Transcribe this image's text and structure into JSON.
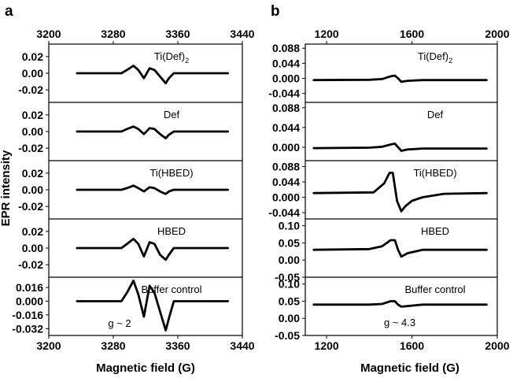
{
  "figure": {
    "panel_letters": [
      "a",
      "b"
    ],
    "ylabel": "EPR intensity",
    "xlabel": "Magnetic field (G)"
  },
  "chart_data": [
    {
      "panel": "a",
      "type": "line",
      "xlabel": "Magnetic field (G)",
      "ylabel": "EPR intensity",
      "xlim": [
        3200,
        3440
      ],
      "xticks": [
        3200,
        3280,
        3360,
        3440
      ],
      "xticklabels": [
        "3200",
        "3280",
        "3360",
        "3440"
      ],
      "grid": false,
      "subplots": [
        {
          "title": "Ti(Def)2",
          "title_main": "Ti(Def)",
          "title_sub": "2",
          "ylim": [
            -0.035,
            0.035
          ],
          "yticks": [
            0.02,
            0.0,
            -0.02
          ],
          "yticklabels": [
            "0.02",
            "0.00",
            "-0.02"
          ],
          "series": [
            {
              "x": [
                3235,
                3290,
                3297,
                3305,
                3311,
                3318,
                3325,
                3331,
                3338,
                3345,
                3349,
                3355,
                3375,
                3422
              ],
              "y": [
                0.0,
                0.0,
                0.004,
                0.009,
                0.004,
                -0.006,
                0.006,
                0.004,
                -0.004,
                -0.012,
                -0.006,
                0.0,
                0.0,
                0.0
              ]
            }
          ]
        },
        {
          "title": "Def",
          "ylim": [
            -0.035,
            0.035
          ],
          "yticks": [
            0.02,
            0.0,
            -0.02
          ],
          "yticklabels": [
            "0.02",
            "0.00",
            "-0.02"
          ],
          "series": [
            {
              "x": [
                3235,
                3290,
                3297,
                3305,
                3311,
                3318,
                3325,
                3331,
                3338,
                3345,
                3349,
                3355,
                3375,
                3422
              ],
              "y": [
                0.0,
                0.0,
                0.003,
                0.006,
                0.003,
                -0.003,
                0.004,
                0.003,
                -0.003,
                -0.008,
                -0.004,
                0.0,
                0.0,
                0.0
              ]
            }
          ]
        },
        {
          "title": "Ti(HBED)",
          "ylim": [
            -0.035,
            0.035
          ],
          "yticks": [
            0.02,
            0.0,
            -0.02
          ],
          "yticklabels": [
            "0.02",
            "0.00",
            "-0.02"
          ],
          "series": [
            {
              "x": [
                3235,
                3290,
                3297,
                3305,
                3311,
                3318,
                3325,
                3331,
                3338,
                3345,
                3349,
                3355,
                3375,
                3422
              ],
              "y": [
                0.0,
                0.0,
                0.002,
                0.005,
                0.002,
                -0.002,
                0.003,
                0.002,
                -0.002,
                -0.005,
                -0.002,
                0.0,
                0.0,
                0.0
              ]
            }
          ]
        },
        {
          "title": "HBED",
          "ylim": [
            -0.035,
            0.035
          ],
          "yticks": [
            0.02,
            0.0,
            -0.02
          ],
          "yticklabels": [
            "0.02",
            "0.00",
            "-0.02"
          ],
          "series": [
            {
              "x": [
                3235,
                3290,
                3297,
                3305,
                3311,
                3318,
                3325,
                3331,
                3338,
                3345,
                3349,
                3355,
                3375,
                3422
              ],
              "y": [
                0.0,
                0.0,
                0.005,
                0.011,
                0.005,
                -0.01,
                0.007,
                0.005,
                -0.008,
                -0.014,
                -0.008,
                0.0,
                0.0,
                0.0
              ]
            }
          ]
        },
        {
          "title": "Buffer control",
          "annotation": "g ~ 2",
          "ylim": [
            -0.04,
            0.028
          ],
          "yticks": [
            0.016,
            0.0,
            -0.016,
            -0.032
          ],
          "yticklabels": [
            "0.016",
            "0.000",
            "-0.016",
            "-0.032"
          ],
          "series": [
            {
              "x": [
                3235,
                3290,
                3297,
                3305,
                3311,
                3318,
                3325,
                3331,
                3338,
                3345,
                3349,
                3355,
                3375,
                3422
              ],
              "y": [
                0.0,
                0.0,
                0.01,
                0.024,
                0.008,
                -0.018,
                0.018,
                0.01,
                -0.012,
                -0.034,
                -0.02,
                0.0,
                0.0,
                0.0
              ]
            }
          ]
        }
      ]
    },
    {
      "panel": "b",
      "type": "line",
      "xlabel": "Magnetic field (G)",
      "xlim": [
        1100,
        2000
      ],
      "xticks": [
        1200,
        1600,
        2000
      ],
      "xticklabels": [
        "1200",
        "1600",
        "2000"
      ],
      "grid": false,
      "subplots": [
        {
          "title": "Ti(Def)2",
          "title_main": "Ti(Def)",
          "title_sub": "2",
          "ylim": [
            -0.07,
            0.1
          ],
          "yticks": [
            0.088,
            0.044,
            0.0,
            -0.044
          ],
          "yticklabels": [
            "0.088",
            "0.044",
            "0.000",
            "-0.044"
          ],
          "series": [
            {
              "x": [
                1140,
                1400,
                1460,
                1500,
                1520,
                1535,
                1550,
                1580,
                1650,
                1950
              ],
              "y": [
                -0.005,
                -0.004,
                -0.002,
                0.006,
                0.008,
                0.0,
                -0.01,
                -0.007,
                -0.005,
                -0.005
              ]
            }
          ]
        },
        {
          "title": "Def",
          "ylim": [
            -0.03,
            0.1
          ],
          "yticks": [
            0.088,
            0.044,
            0.0
          ],
          "yticklabels": [
            "0.088",
            "0.044",
            "0.000"
          ],
          "series": [
            {
              "x": [
                1140,
                1400,
                1460,
                1500,
                1520,
                1535,
                1550,
                1580,
                1650,
                1950
              ],
              "y": [
                -0.002,
                -0.001,
                0.001,
                0.006,
                0.008,
                0.0,
                -0.008,
                -0.005,
                -0.003,
                -0.003
              ]
            }
          ]
        },
        {
          "title": "Ti(HBED)",
          "ylim": [
            -0.062,
            0.105
          ],
          "yticks": [
            0.088,
            0.044,
            0.0,
            -0.044
          ],
          "yticklabels": [
            "0.088",
            "0.044",
            "0.000",
            "-0.044"
          ],
          "series": [
            {
              "x": [
                1140,
                1420,
                1470,
                1495,
                1510,
                1530,
                1550,
                1570,
                1600,
                1650,
                1750,
                1950
              ],
              "y": [
                0.012,
                0.014,
                0.04,
                0.07,
                0.07,
                -0.01,
                -0.04,
                -0.025,
                -0.01,
                0.0,
                0.01,
                0.012
              ]
            }
          ]
        },
        {
          "title": "HBED",
          "ylim": [
            -0.05,
            0.12
          ],
          "yticks": [
            0.1,
            0.05,
            0.0,
            -0.05
          ],
          "yticklabels": [
            "0.10",
            "0.05",
            "0.00",
            "-0.05"
          ],
          "series": [
            {
              "x": [
                1140,
                1400,
                1460,
                1500,
                1520,
                1535,
                1550,
                1580,
                1650,
                1950
              ],
              "y": [
                0.03,
                0.032,
                0.04,
                0.058,
                0.058,
                0.03,
                0.01,
                0.02,
                0.03,
                0.03
              ]
            }
          ]
        },
        {
          "title": "Buffer control",
          "annotation": "g ~ 4.3",
          "ylim": [
            -0.05,
            0.12
          ],
          "yticks": [
            0.1,
            0.05,
            0.0,
            -0.05
          ],
          "yticklabels": [
            "0.10",
            "0.05",
            "0.00",
            "-0.05"
          ],
          "series": [
            {
              "x": [
                1140,
                1400,
                1460,
                1500,
                1520,
                1535,
                1550,
                1580,
                1650,
                1950
              ],
              "y": [
                0.04,
                0.04,
                0.042,
                0.05,
                0.05,
                0.04,
                0.034,
                0.036,
                0.04,
                0.04
              ]
            }
          ]
        }
      ]
    }
  ]
}
